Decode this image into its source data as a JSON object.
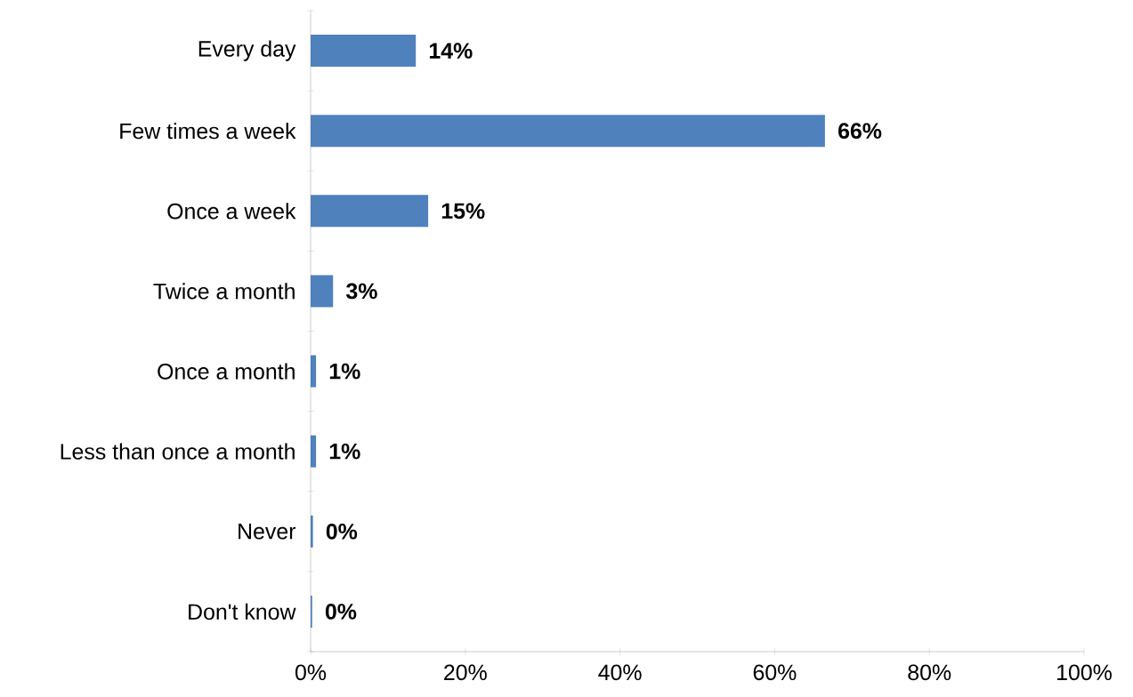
{
  "chart_data": {
    "type": "bar",
    "orientation": "horizontal",
    "categories": [
      "Every day",
      "Few times a week",
      "Once a week",
      "Twice a month",
      "Once a month",
      "Less than once a month",
      "Never",
      "Don't know"
    ],
    "values": [
      13.6,
      66.5,
      15.2,
      2.9,
      0.7,
      0.7,
      0.3,
      0.2
    ],
    "value_labels": [
      "14%",
      "66%",
      "15%",
      "3%",
      "1%",
      "1%",
      "0%",
      "0%"
    ],
    "color": "#4f81bd",
    "xlim": [
      0,
      100
    ],
    "xticks": [
      {
        "value": 0,
        "label": "0%"
      },
      {
        "value": 20,
        "label": "20%"
      },
      {
        "value": 40,
        "label": "40%"
      },
      {
        "value": 60,
        "label": "60%"
      },
      {
        "value": 80,
        "label": "80%"
      },
      {
        "value": 100,
        "label": "100%"
      }
    ],
    "grid": false
  }
}
